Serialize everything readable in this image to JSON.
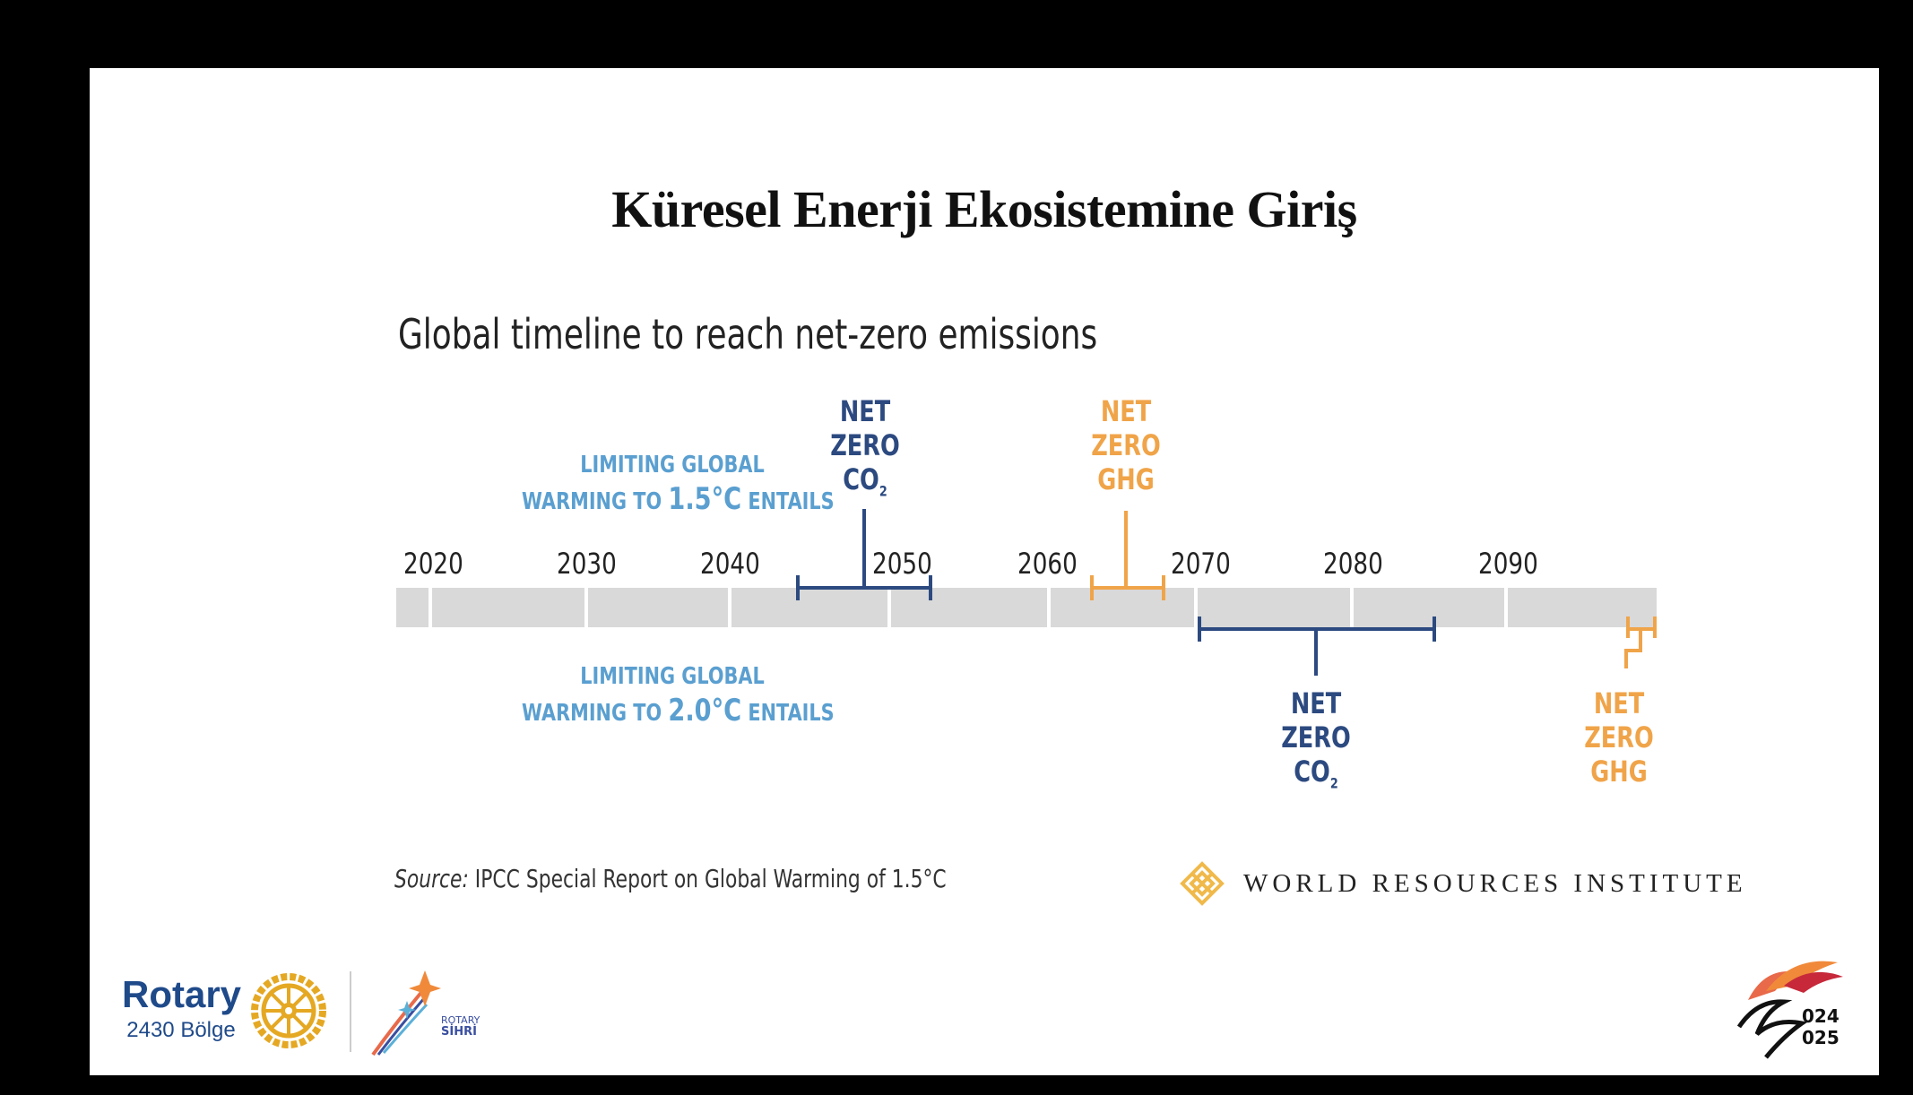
{
  "slide": {
    "title": "Küresel Enerji Ekosistemine Giriş"
  },
  "figure": {
    "title": "Global timeline to reach net-zero emissions",
    "caption_15": {
      "line1": "LIMITING GLOBAL",
      "prefix": "WARMING TO ",
      "value": "1.5°C",
      "suffix": " ENTAILS"
    },
    "caption_20": {
      "line1": "LIMITING GLOBAL",
      "prefix": "WARMING TO ",
      "value": "2.0°C",
      "suffix": " ENTAILS"
    },
    "years": [
      "2020",
      "2030",
      "2040",
      "2050",
      "2060",
      "2070",
      "2080",
      "2090"
    ],
    "markers": {
      "co2_15": {
        "line1": "NET",
        "line2": "ZERO",
        "line3": "CO",
        "sub": "2"
      },
      "ghg_15": {
        "line1": "NET",
        "line2": "ZERO",
        "line3": "GHG"
      },
      "co2_20": {
        "line1": "NET",
        "line2": "ZERO",
        "line3": "CO",
        "sub": "2"
      },
      "ghg_20": {
        "line1": "NET",
        "line2": "ZERO",
        "line3": "GHG"
      }
    },
    "source_label": "Source:",
    "source_text": " IPCC Special Report on Global Warming of 1.5°C",
    "publisher": "WORLD RESOURCES INSTITUTE",
    "colors": {
      "navy": "#2c4a80",
      "orange": "#f0a449",
      "caption_blue": "#5a9fd0",
      "track": "#d9d9d9"
    }
  },
  "footer": {
    "rotary_word": "Rotary",
    "rotary_district": "2430 Bölge",
    "sihri_line1": "ROTARY",
    "sihri_line2": "SİHRİ",
    "corner_year_top": "024",
    "corner_year_bottom": "025"
  }
}
